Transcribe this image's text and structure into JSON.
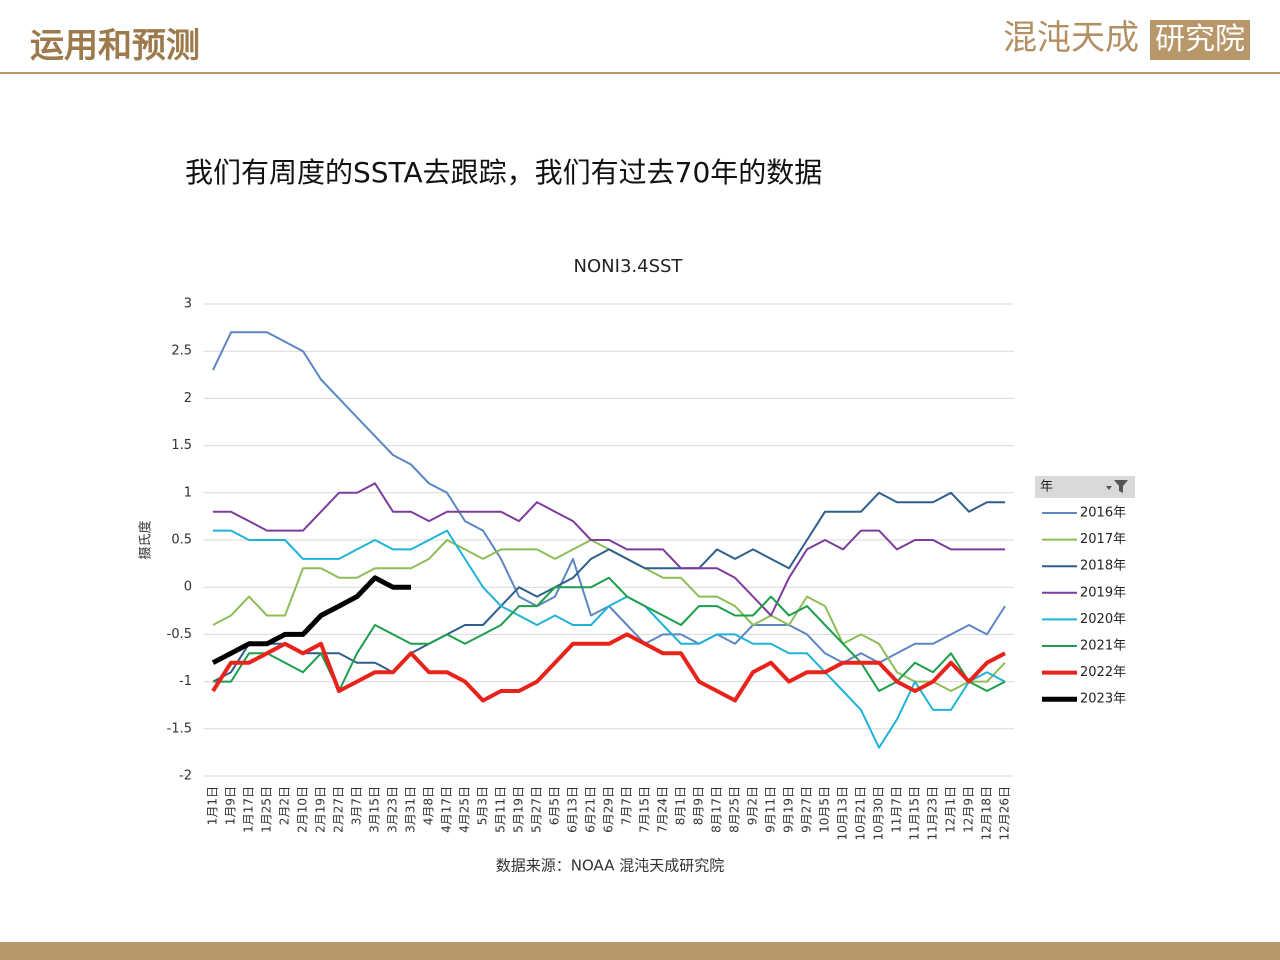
{
  "header": {
    "title": "运用和预测",
    "logo_main": "混沌天成",
    "logo_box": "研究院"
  },
  "subtitle": "我们有周度的SSTA去跟踪，我们有过去70年的数据",
  "chart_data": {
    "type": "line",
    "title": "NONI3.4SST",
    "y_label": "摄氏度",
    "source": "数据来源：NOAA 混沌天成研究院",
    "legend_title": "年",
    "legend_position": "right",
    "grid": true,
    "ylim": [
      -2,
      3
    ],
    "yticks": [
      3,
      2.5,
      2,
      1.5,
      1,
      0.5,
      0,
      -0.5,
      -1,
      -1.5,
      -2
    ],
    "categories": [
      "1月1日",
      "1月9日",
      "1月17日",
      "1月25日",
      "2月2日",
      "2月10日",
      "2月19日",
      "2月27日",
      "3月7日",
      "3月15日",
      "3月23日",
      "3月31日",
      "4月8日",
      "4月17日",
      "4月25日",
      "5月3日",
      "5月11日",
      "5月19日",
      "5月27日",
      "6月5日",
      "6月13日",
      "6月21日",
      "6月29日",
      "7月7日",
      "7月15日",
      "7月24日",
      "8月1日",
      "8月9日",
      "8月17日",
      "8月25日",
      "9月2日",
      "9月11日",
      "9月19日",
      "9月27日",
      "10月5日",
      "10月13日",
      "10月21日",
      "10月30日",
      "11月7日",
      "11月15日",
      "11月23日",
      "12月1日",
      "12月9日",
      "12月18日",
      "12月26日"
    ],
    "series": [
      {
        "name": "2016年",
        "color": "#5b86c2",
        "line_width": 2,
        "values": [
          2.3,
          2.7,
          2.7,
          2.7,
          2.6,
          2.5,
          2.2,
          2.0,
          1.8,
          1.6,
          1.4,
          1.3,
          1.1,
          1.0,
          0.7,
          0.6,
          0.3,
          -0.1,
          -0.2,
          -0.1,
          0.3,
          -0.3,
          -0.2,
          -0.4,
          -0.6,
          -0.5,
          -0.5,
          -0.6,
          -0.5,
          -0.6,
          -0.4,
          -0.4,
          -0.4,
          -0.5,
          -0.7,
          -0.8,
          -0.7,
          -0.8,
          -0.7,
          -0.6,
          -0.6,
          -0.5,
          -0.4,
          -0.5,
          -0.2
        ]
      },
      {
        "name": "2017年",
        "color": "#8cbd56",
        "line_width": 2,
        "values": [
          -0.4,
          -0.3,
          -0.1,
          -0.3,
          -0.3,
          0.2,
          0.2,
          0.1,
          0.1,
          0.2,
          0.2,
          0.2,
          0.3,
          0.5,
          0.4,
          0.3,
          0.4,
          0.4,
          0.4,
          0.3,
          0.4,
          0.5,
          0.4,
          0.3,
          0.2,
          0.1,
          0.1,
          -0.1,
          -0.1,
          -0.2,
          -0.4,
          -0.3,
          -0.4,
          -0.1,
          -0.2,
          -0.6,
          -0.5,
          -0.6,
          -0.9,
          -1.0,
          -1.0,
          -1.1,
          -1.0,
          -1.0,
          -0.8
        ]
      },
      {
        "name": "2018年",
        "color": "#2e5f8c",
        "line_width": 2,
        "values": [
          -1.0,
          -0.9,
          -0.6,
          -0.6,
          -0.6,
          -0.7,
          -0.7,
          -0.7,
          -0.8,
          -0.8,
          -0.9,
          -0.7,
          -0.6,
          -0.5,
          -0.4,
          -0.4,
          -0.2,
          0.0,
          -0.1,
          0.0,
          0.1,
          0.3,
          0.4,
          0.3,
          0.2,
          0.2,
          0.2,
          0.2,
          0.4,
          0.3,
          0.4,
          0.3,
          0.2,
          0.5,
          0.8,
          0.8,
          0.8,
          1.0,
          0.9,
          0.9,
          0.9,
          1.0,
          0.8,
          0.9,
          0.9
        ]
      },
      {
        "name": "2019年",
        "color": "#7d3c9c",
        "line_width": 2,
        "values": [
          0.8,
          0.8,
          0.7,
          0.6,
          0.6,
          0.6,
          0.8,
          1.0,
          1.0,
          1.1,
          0.8,
          0.8,
          0.7,
          0.8,
          0.8,
          0.8,
          0.8,
          0.7,
          0.9,
          0.8,
          0.7,
          0.5,
          0.5,
          0.4,
          0.4,
          0.4,
          0.2,
          0.2,
          0.2,
          0.1,
          -0.1,
          -0.3,
          0.1,
          0.4,
          0.5,
          0.4,
          0.6,
          0.6,
          0.4,
          0.5,
          0.5,
          0.4,
          0.4,
          0.4,
          0.4
        ]
      },
      {
        "name": "2020年",
        "color": "#1fb3d8",
        "line_width": 2,
        "values": [
          0.6,
          0.6,
          0.5,
          0.5,
          0.5,
          0.3,
          0.3,
          0.3,
          0.4,
          0.5,
          0.4,
          0.4,
          0.5,
          0.6,
          0.3,
          0.0,
          -0.2,
          -0.3,
          -0.4,
          -0.3,
          -0.4,
          -0.4,
          -0.2,
          -0.1,
          -0.2,
          -0.4,
          -0.6,
          -0.6,
          -0.5,
          -0.5,
          -0.6,
          -0.6,
          -0.7,
          -0.7,
          -0.9,
          -1.1,
          -1.3,
          -1.7,
          -1.4,
          -1.0,
          -1.3,
          -1.3,
          -1.0,
          -0.9,
          -1.0
        ]
      },
      {
        "name": "2021年",
        "color": "#1c9e4b",
        "line_width": 2,
        "values": [
          -1.0,
          -1.0,
          -0.7,
          -0.7,
          -0.8,
          -0.9,
          -0.7,
          -1.1,
          -0.7,
          -0.4,
          -0.5,
          -0.6,
          -0.6,
          -0.5,
          -0.6,
          -0.5,
          -0.4,
          -0.2,
          -0.2,
          0.0,
          0.0,
          0.0,
          0.1,
          -0.1,
          -0.2,
          -0.3,
          -0.4,
          -0.2,
          -0.2,
          -0.3,
          -0.3,
          -0.1,
          -0.3,
          -0.2,
          -0.4,
          -0.6,
          -0.8,
          -1.1,
          -1.0,
          -0.8,
          -0.9,
          -0.7,
          -1.0,
          -1.1,
          -1.0
        ]
      },
      {
        "name": "2022年",
        "color": "#e8231c",
        "line_width": 4,
        "values": [
          -1.1,
          -0.8,
          -0.8,
          -0.7,
          -0.6,
          -0.7,
          -0.6,
          -1.1,
          -1.0,
          -0.9,
          -0.9,
          -0.7,
          -0.9,
          -0.9,
          -1.0,
          -1.2,
          -1.1,
          -1.1,
          -1.0,
          -0.8,
          -0.6,
          -0.6,
          -0.6,
          -0.5,
          -0.6,
          -0.7,
          -0.7,
          -1.0,
          -1.1,
          -1.2,
          -0.9,
          -0.8,
          -1.0,
          -0.9,
          -0.9,
          -0.8,
          -0.8,
          -0.8,
          -1.0,
          -1.1,
          -1.0,
          -0.8,
          -1.0,
          -0.8,
          -0.7
        ]
      },
      {
        "name": "2023年",
        "color": "#000000",
        "line_width": 5,
        "values": [
          -0.8,
          -0.7,
          -0.6,
          -0.6,
          -0.5,
          -0.5,
          -0.3,
          -0.2,
          -0.1,
          0.1,
          0.0,
          0.0,
          null,
          null,
          null,
          null,
          null,
          null,
          null,
          null,
          null,
          null,
          null,
          null,
          null,
          null,
          null,
          null,
          null,
          null,
          null,
          null,
          null,
          null,
          null,
          null,
          null,
          null,
          null,
          null,
          null,
          null,
          null,
          null,
          null
        ]
      }
    ]
  }
}
